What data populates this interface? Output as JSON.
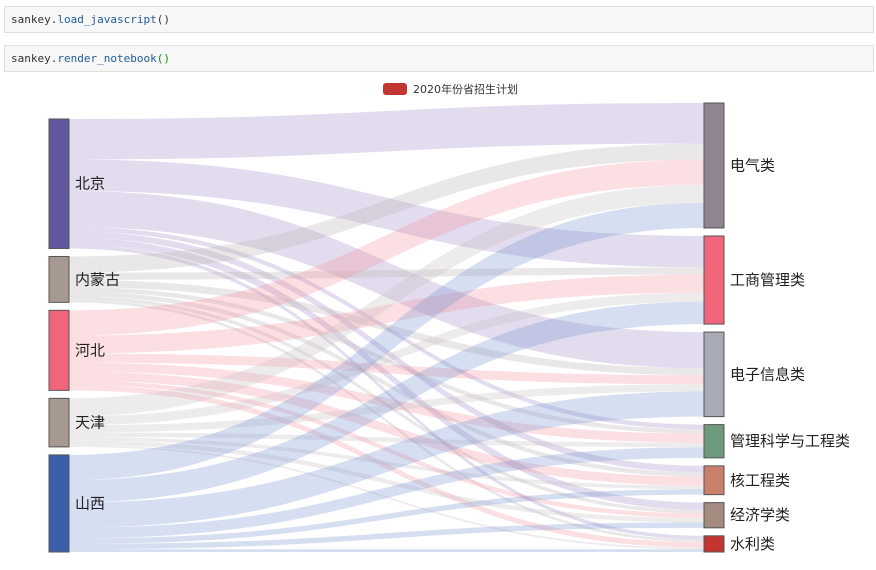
{
  "cells": [
    {
      "obj": "sankey",
      "fn": "load_javascript",
      "parens": "()"
    },
    {
      "obj": "sankey",
      "fn": "render_notebook",
      "parens": "()"
    }
  ],
  "legend": {
    "label": "2020年份省招生计划",
    "color": "#c23531"
  },
  "chart_data": {
    "type": "sankey",
    "legend": [
      "2020年份省招生计划"
    ],
    "sources": [
      {
        "name": "北京",
        "color": "#61589d"
      },
      {
        "name": "内蒙古",
        "color": "#a89990"
      },
      {
        "name": "河北",
        "color": "#f0657c"
      },
      {
        "name": "天津",
        "color": "#a89990"
      },
      {
        "name": "山西",
        "color": "#3b5fa8"
      }
    ],
    "targets": [
      {
        "name": "电气类",
        "color": "#918491"
      },
      {
        "name": "工商管理类",
        "color": "#f0657c"
      },
      {
        "name": "电子信息类",
        "color": "#a8aab5"
      },
      {
        "name": "管理科学与工程类",
        "color": "#6c9a7a"
      },
      {
        "name": "核工程类",
        "color": "#c9806a"
      },
      {
        "name": "经济学类",
        "color": "#a58a7f"
      },
      {
        "name": "水利类",
        "color": "#c23531"
      }
    ],
    "links": [
      {
        "source": "北京",
        "target": "电气类",
        "value": 45
      },
      {
        "source": "北京",
        "target": "工商管理类",
        "value": 35
      },
      {
        "source": "北京",
        "target": "电子信息类",
        "value": 40
      },
      {
        "source": "北京",
        "target": "管理科学与工程类",
        "value": 5
      },
      {
        "source": "北京",
        "target": "核工程类",
        "value": 7
      },
      {
        "source": "北京",
        "target": "经济学类",
        "value": 8
      },
      {
        "source": "北京",
        "target": "水利类",
        "value": 4
      },
      {
        "source": "内蒙古",
        "target": "电气类",
        "value": 18
      },
      {
        "source": "内蒙古",
        "target": "工商管理类",
        "value": 8
      },
      {
        "source": "内蒙古",
        "target": "电子信息类",
        "value": 8
      },
      {
        "source": "内蒙古",
        "target": "管理科学与工程类",
        "value": 5
      },
      {
        "source": "内蒙古",
        "target": "核工程类",
        "value": 5
      },
      {
        "source": "内蒙古",
        "target": "经济学类",
        "value": 4
      },
      {
        "source": "内蒙古",
        "target": "水利类",
        "value": 3
      },
      {
        "source": "河北",
        "target": "电气类",
        "value": 28
      },
      {
        "source": "河北",
        "target": "工商管理类",
        "value": 20
      },
      {
        "source": "河北",
        "target": "电子信息类",
        "value": 10
      },
      {
        "source": "河北",
        "target": "管理科学与工程类",
        "value": 10
      },
      {
        "source": "河北",
        "target": "核工程类",
        "value": 10
      },
      {
        "source": "河北",
        "target": "经济学类",
        "value": 5
      },
      {
        "source": "河北",
        "target": "水利类",
        "value": 6
      },
      {
        "source": "天津",
        "target": "电气类",
        "value": 20
      },
      {
        "source": "天津",
        "target": "工商管理类",
        "value": 10
      },
      {
        "source": "天津",
        "target": "电子信息类",
        "value": 8
      },
      {
        "source": "天津",
        "target": "管理科学与工程类",
        "value": 5
      },
      {
        "source": "天津",
        "target": "核工程类",
        "value": 4
      },
      {
        "source": "天津",
        "target": "经济学类",
        "value": 5
      },
      {
        "source": "天津",
        "target": "水利类",
        "value": 2
      },
      {
        "source": "山西",
        "target": "电气类",
        "value": 28
      },
      {
        "source": "山西",
        "target": "工商管理类",
        "value": 25
      },
      {
        "source": "山西",
        "target": "电子信息类",
        "value": 28
      },
      {
        "source": "山西",
        "target": "管理科学与工程类",
        "value": 12
      },
      {
        "source": "山西",
        "target": "核工程类",
        "value": 6
      },
      {
        "source": "山西",
        "target": "经济学类",
        "value": 6
      },
      {
        "source": "山西",
        "target": "水利类",
        "value": 3
      }
    ]
  }
}
